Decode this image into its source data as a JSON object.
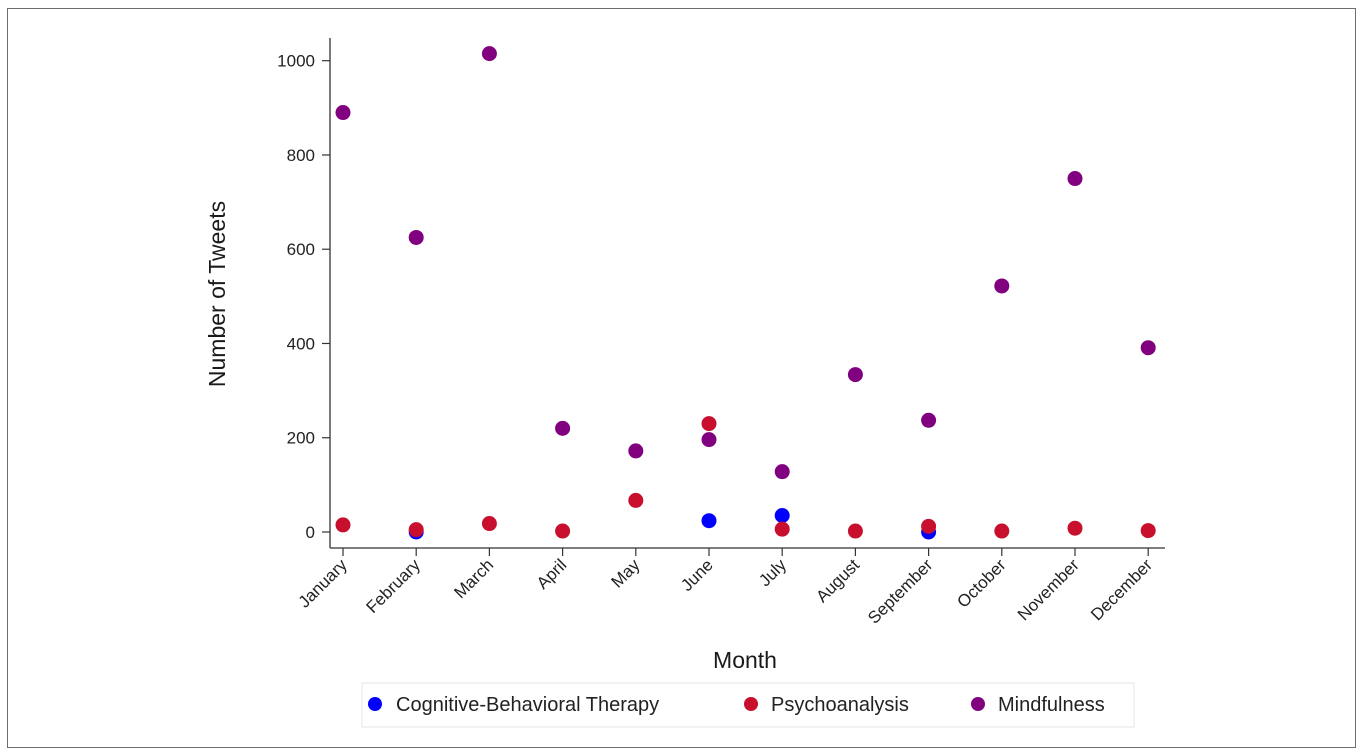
{
  "chart_data": {
    "type": "scatter",
    "categories": [
      "January",
      "February",
      "March",
      "April",
      "May",
      "June",
      "July",
      "August",
      "September",
      "October",
      "November",
      "December"
    ],
    "xlabel": "Month",
    "ylabel": "Number of Tweets",
    "ylim": [
      0,
      1000
    ],
    "yticks": [
      0,
      200,
      400,
      600,
      800,
      1000
    ],
    "grid": false,
    "legend_position": "bottom",
    "series": [
      {
        "name": "Cognitive-Behavioral Therapy",
        "color": "#0000ff",
        "values": [
          null,
          0,
          null,
          null,
          null,
          24,
          35,
          null,
          0,
          null,
          null,
          null
        ]
      },
      {
        "name": "Psychoanalysis",
        "color": "#c8102e",
        "values": [
          15,
          5,
          18,
          2,
          67,
          230,
          6,
          2,
          12,
          2,
          8,
          3
        ]
      },
      {
        "name": "Mindfulness",
        "color": "#800080",
        "values": [
          890,
          625,
          1015,
          220,
          172,
          196,
          128,
          334,
          237,
          522,
          750,
          391
        ]
      }
    ]
  }
}
